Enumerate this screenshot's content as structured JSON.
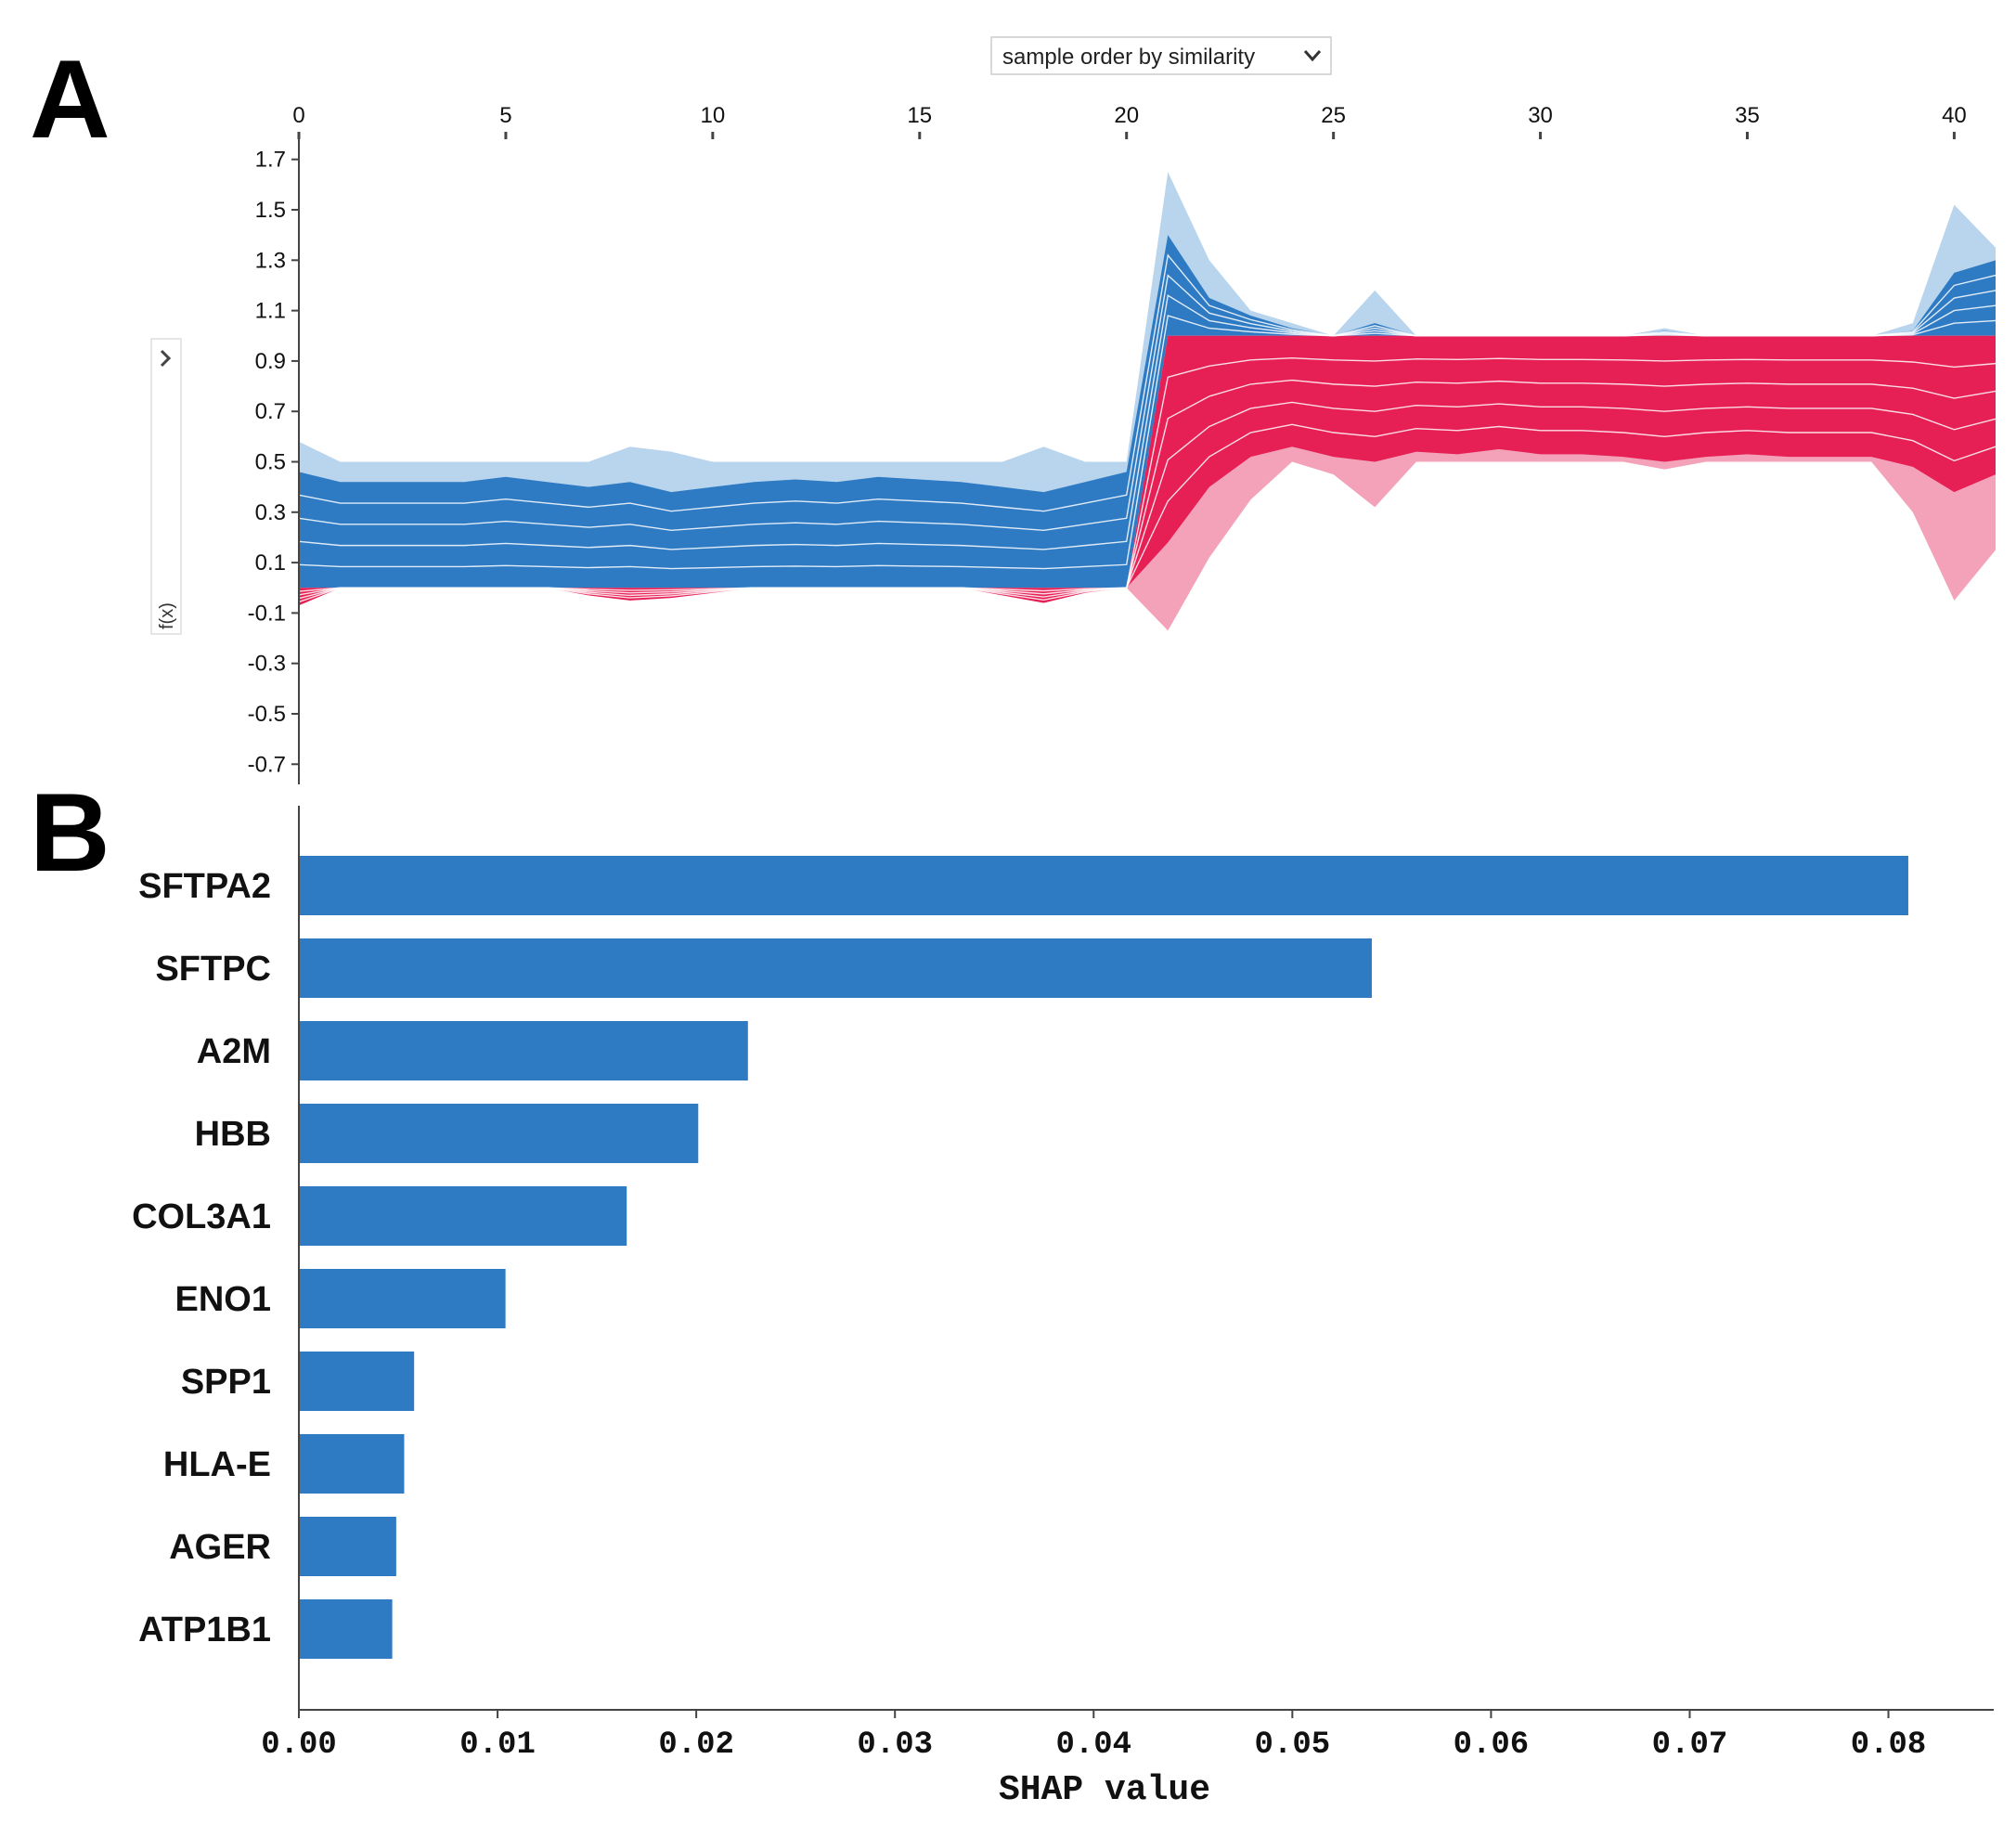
{
  "panel_labels": {
    "a": "A",
    "b": "B"
  },
  "colors": {
    "blue_dark": "#2e7bc4",
    "blue_light": "#b9d5ee",
    "red_dark": "#e61f55",
    "red_light": "#f3a2b9",
    "bar": "#2e7bc4",
    "axis": "#444444"
  },
  "controls": {
    "order_select": "sample order by similarity",
    "chevron_icon": "chevron-down-icon",
    "collapse_icon": "chevron-right-icon",
    "fx_label": "f(x)"
  },
  "chart_data": [
    {
      "id": "A",
      "type": "area",
      "title": "",
      "xlabel": "",
      "ylabel": "f(x)",
      "x_ticks": [
        0,
        5,
        10,
        15,
        20,
        25,
        30,
        35,
        40
      ],
      "x_tick_labels": [
        "0",
        "5",
        "10",
        "15",
        "20",
        "25",
        "30",
        "35",
        "40"
      ],
      "xlim": [
        0,
        41
      ],
      "y_ticks": [
        1.7,
        1.5,
        1.3,
        1.1,
        0.9,
        0.7,
        0.5,
        0.3,
        0.1,
        -0.1,
        -0.3,
        -0.5,
        -0.7
      ],
      "y_tick_labels": [
        "1.7",
        "1.5",
        "1.3",
        "1.1",
        "0.9",
        "0.7",
        "0.5",
        "0.3",
        "0.1",
        "-0.1",
        "-0.3",
        "-0.5",
        "-0.7"
      ],
      "ylim": [
        -0.78,
        1.78
      ],
      "samples": [
        0,
        1,
        2,
        3,
        4,
        5,
        6,
        7,
        8,
        9,
        10,
        11,
        12,
        13,
        14,
        15,
        16,
        17,
        18,
        19,
        20,
        21,
        22,
        23,
        24,
        25,
        26,
        27,
        28,
        29,
        30,
        31,
        32,
        33,
        34,
        35,
        36,
        37,
        38,
        39,
        40,
        41
      ],
      "base_value": [
        0.0,
        0.0,
        0.0,
        0.0,
        0.0,
        0.0,
        0.0,
        0.0,
        0.0,
        0.0,
        0.0,
        0.0,
        0.0,
        0.0,
        0.0,
        0.0,
        0.0,
        0.0,
        0.0,
        0.0,
        0.0,
        1.0,
        1.0,
        1.0,
        1.0,
        1.0,
        1.0,
        1.0,
        1.0,
        1.0,
        1.0,
        1.0,
        1.0,
        1.0,
        1.0,
        1.0,
        1.0,
        1.0,
        1.0,
        1.0,
        1.0,
        1.0
      ],
      "series": [
        {
          "name": "blue_light",
          "values": [
            0.58,
            0.5,
            0.5,
            0.5,
            0.5,
            0.5,
            0.5,
            0.5,
            0.56,
            0.54,
            0.5,
            0.5,
            0.5,
            0.5,
            0.5,
            0.5,
            0.5,
            0.5,
            0.56,
            0.5,
            0.5,
            1.65,
            1.3,
            1.1,
            1.05,
            1.0,
            1.18,
            1.0,
            1.0,
            1.0,
            1.0,
            1.0,
            1.0,
            1.03,
            1.0,
            1.0,
            1.0,
            1.0,
            1.0,
            1.05,
            1.52,
            1.35
          ]
        },
        {
          "name": "blue_dark",
          "values": [
            0.46,
            0.42,
            0.42,
            0.42,
            0.42,
            0.44,
            0.42,
            0.4,
            0.42,
            0.38,
            0.4,
            0.42,
            0.43,
            0.42,
            0.44,
            0.43,
            0.42,
            0.4,
            0.38,
            0.42,
            0.46,
            1.4,
            1.15,
            1.08,
            1.03,
            1.0,
            1.05,
            1.0,
            1.0,
            1.0,
            1.0,
            1.0,
            1.0,
            1.02,
            1.0,
            1.0,
            1.0,
            1.0,
            1.0,
            1.02,
            1.25,
            1.3
          ]
        },
        {
          "name": "red_dark",
          "values": [
            -0.07,
            0.0,
            0.0,
            0.0,
            0.0,
            0.0,
            0.0,
            -0.03,
            -0.05,
            -0.04,
            -0.02,
            0.0,
            0.0,
            0.0,
            0.0,
            0.0,
            0.0,
            -0.03,
            -0.06,
            -0.02,
            0.0,
            0.18,
            0.4,
            0.52,
            0.56,
            0.52,
            0.5,
            0.54,
            0.53,
            0.55,
            0.53,
            0.53,
            0.52,
            0.5,
            0.52,
            0.53,
            0.52,
            0.52,
            0.52,
            0.48,
            0.38,
            0.45
          ]
        },
        {
          "name": "red_light",
          "values": [
            -0.07,
            0.0,
            0.0,
            0.0,
            0.0,
            0.0,
            0.0,
            -0.03,
            -0.05,
            -0.04,
            -0.02,
            0.0,
            0.0,
            0.0,
            0.0,
            0.0,
            0.0,
            -0.03,
            -0.06,
            -0.02,
            0.0,
            -0.17,
            0.12,
            0.35,
            0.5,
            0.45,
            0.32,
            0.5,
            0.5,
            0.5,
            0.5,
            0.5,
            0.5,
            0.47,
            0.5,
            0.5,
            0.5,
            0.5,
            0.5,
            0.3,
            -0.05,
            0.15
          ]
        }
      ]
    },
    {
      "id": "B",
      "type": "bar",
      "orientation": "horizontal",
      "title": "",
      "xlabel": "SHAP value",
      "ylabel": "",
      "categories": [
        "SFTPA2",
        "SFTPC",
        "A2M",
        "HBB",
        "COL3A1",
        "ENO1",
        "SPP1",
        "HLA-E",
        "AGER",
        "ATP1B1"
      ],
      "values": [
        0.081,
        0.054,
        0.0226,
        0.0201,
        0.0165,
        0.0104,
        0.0058,
        0.0053,
        0.0049,
        0.0047
      ],
      "x_ticks": [
        0.0,
        0.01,
        0.02,
        0.03,
        0.04,
        0.05,
        0.06,
        0.07,
        0.08
      ],
      "x_tick_labels": [
        "0.00",
        "0.01",
        "0.02",
        "0.03",
        "0.04",
        "0.05",
        "0.06",
        "0.07",
        "0.08"
      ],
      "xlim": [
        0,
        0.0853
      ]
    }
  ]
}
